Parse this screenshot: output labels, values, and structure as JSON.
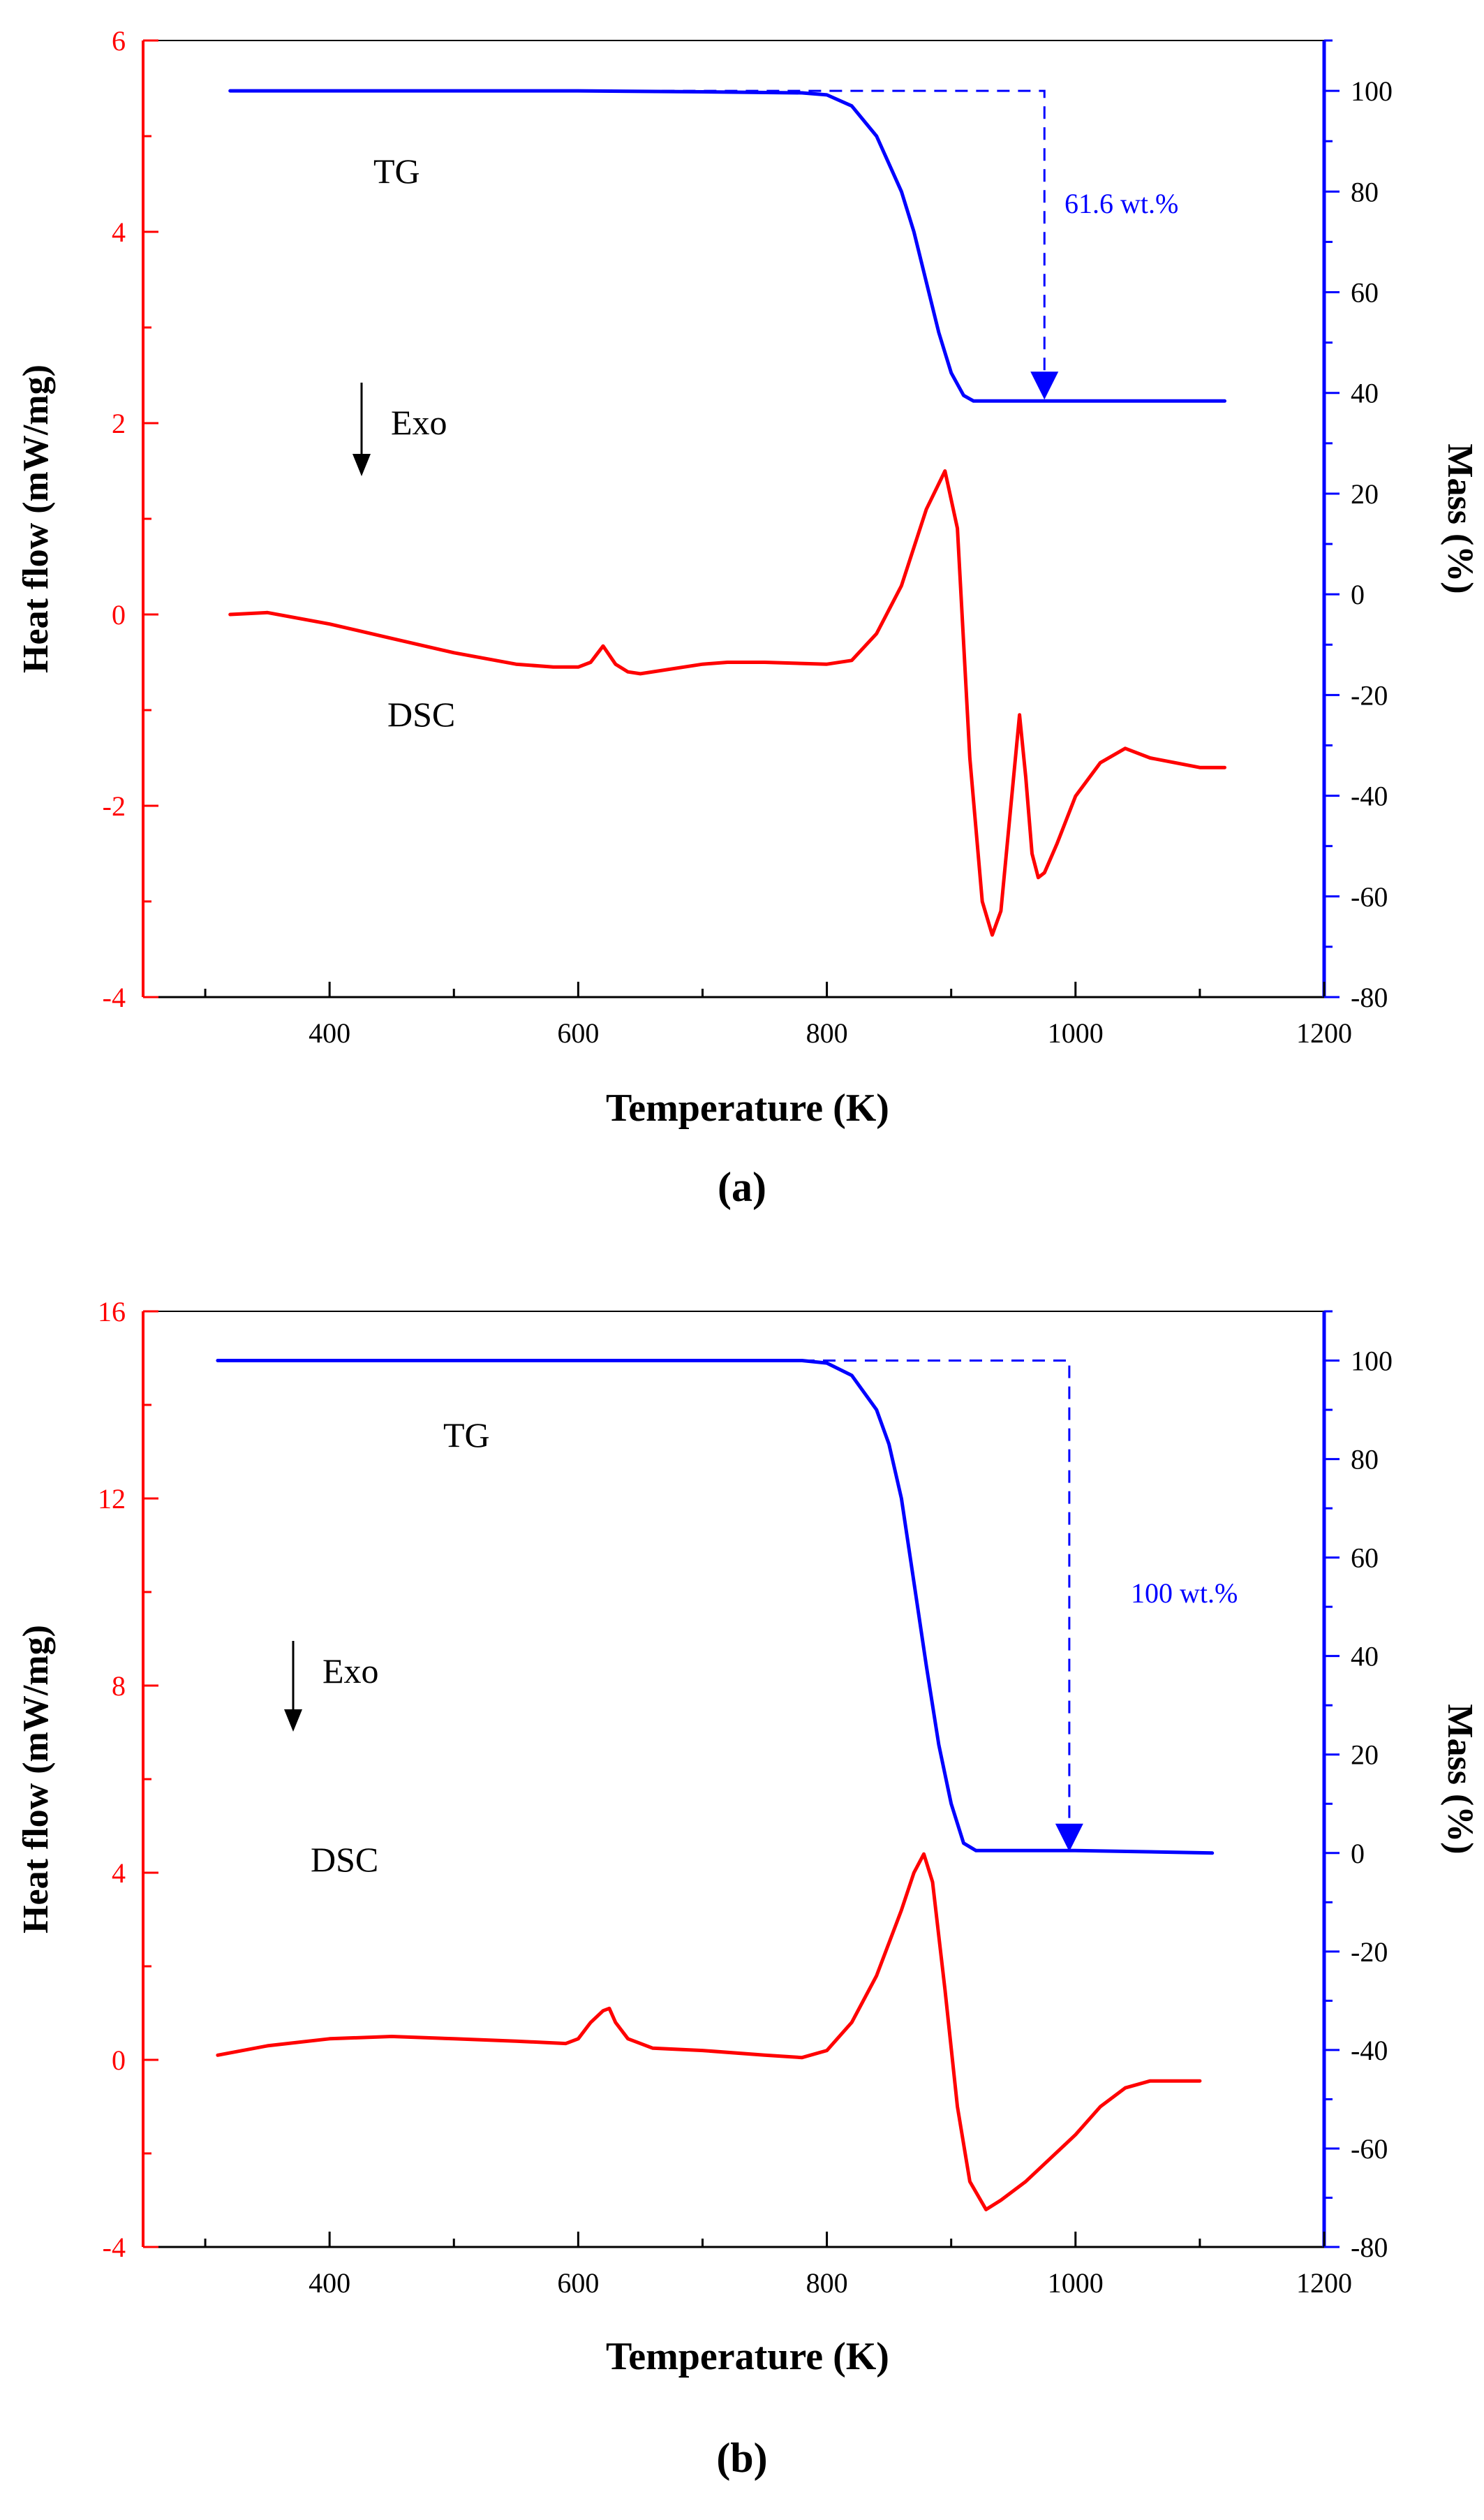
{
  "colors": {
    "heat": "#ff0000",
    "mass": "#0000ff",
    "text": "#000000"
  },
  "chart_data": [
    {
      "type": "line",
      "panel_label": "(a)",
      "xlabel": "Temperature (K)",
      "ylabel_left": "Heat flow (mW/mg)",
      "ylabel_right": "Mass (%)",
      "xlim": [
        250,
        1200
      ],
      "x_ticks": [
        400,
        600,
        800,
        1000,
        1200
      ],
      "ylim_left": [
        -4,
        6
      ],
      "y_ticks_left": [
        -4,
        -2,
        0,
        2,
        4,
        6
      ],
      "ylim_right": [
        -80,
        110
      ],
      "y_ticks_right": [
        -80,
        -60,
        -40,
        -20,
        0,
        20,
        40,
        60,
        80,
        100
      ],
      "annotations": {
        "tg": "TG",
        "dsc": "DSC",
        "exo": "Exo",
        "mass_loss": "61.6 wt.%"
      },
      "mass_loss_marker": {
        "x": 975,
        "from": 100,
        "to": 38.4
      },
      "series": [
        {
          "name": "DSC",
          "axis": "left",
          "x": [
            320,
            350,
            400,
            450,
            500,
            550,
            580,
            600,
            610,
            620,
            630,
            640,
            650,
            700,
            720,
            750,
            800,
            820,
            840,
            860,
            880,
            895,
            905,
            915,
            925,
            933,
            940,
            948,
            955,
            960,
            965,
            970,
            975,
            985,
            1000,
            1020,
            1040,
            1060,
            1080,
            1100,
            1120
          ],
          "values": [
            0.0,
            0.02,
            -0.1,
            -0.25,
            -0.4,
            -0.52,
            -0.55,
            -0.55,
            -0.5,
            -0.33,
            -0.52,
            -0.6,
            -0.62,
            -0.52,
            -0.5,
            -0.5,
            -0.52,
            -0.48,
            -0.2,
            0.3,
            1.1,
            1.5,
            0.9,
            -1.5,
            -3.0,
            -3.35,
            -3.1,
            -2.0,
            -1.05,
            -1.7,
            -2.5,
            -2.75,
            -2.7,
            -2.4,
            -1.9,
            -1.55,
            -1.4,
            -1.5,
            -1.55,
            -1.6,
            -1.6
          ]
        },
        {
          "name": "TG",
          "axis": "right",
          "x": [
            320,
            400,
            500,
            600,
            700,
            780,
            800,
            820,
            840,
            860,
            870,
            880,
            890,
            900,
            910,
            918,
            925,
            950,
            1000,
            1050,
            1100,
            1120
          ],
          "values": [
            100,
            100,
            100,
            100,
            99.8,
            99.6,
            99.2,
            97,
            91,
            80,
            72,
            62,
            52,
            44,
            39.5,
            38.4,
            38.4,
            38.4,
            38.4,
            38.4,
            38.4,
            38.4
          ]
        }
      ]
    },
    {
      "type": "line",
      "panel_label": "(b)",
      "xlabel": "Temperature (K)",
      "ylabel_left": "Heat flow (mW/mg)",
      "ylabel_right": "Mass (%)",
      "xlim": [
        250,
        1200
      ],
      "x_ticks": [
        400,
        600,
        800,
        1000,
        1200
      ],
      "ylim_left": [
        -4,
        16
      ],
      "y_ticks_left": [
        -4,
        0,
        4,
        8,
        12,
        16
      ],
      "ylim_right": [
        -80,
        110
      ],
      "y_ticks_right": [
        -80,
        -60,
        -40,
        -20,
        0,
        20,
        40,
        60,
        80,
        100
      ],
      "annotations": {
        "tg": "TG",
        "dsc": "DSC",
        "exo": "Exo",
        "mass_loss": "100 wt.%"
      },
      "mass_loss_marker": {
        "x": 995,
        "from": 100,
        "to": 0
      },
      "series": [
        {
          "name": "DSC",
          "axis": "left",
          "x": [
            310,
            350,
            400,
            450,
            500,
            550,
            590,
            600,
            610,
            620,
            625,
            630,
            640,
            660,
            700,
            750,
            780,
            800,
            820,
            840,
            860,
            870,
            878,
            885,
            895,
            905,
            915,
            928,
            940,
            960,
            980,
            1000,
            1020,
            1040,
            1060,
            1080,
            1100
          ],
          "values": [
            0.1,
            0.3,
            0.45,
            0.5,
            0.45,
            0.4,
            0.35,
            0.45,
            0.8,
            1.05,
            1.1,
            0.8,
            0.45,
            0.25,
            0.2,
            0.1,
            0.05,
            0.2,
            0.8,
            1.8,
            3.2,
            4.0,
            4.4,
            3.8,
            1.5,
            -1.0,
            -2.6,
            -3.2,
            -3.0,
            -2.6,
            -2.1,
            -1.6,
            -1.0,
            -0.6,
            -0.45,
            -0.45,
            -0.45
          ]
        },
        {
          "name": "TG",
          "axis": "right",
          "x": [
            310,
            400,
            500,
            600,
            700,
            780,
            800,
            820,
            840,
            850,
            860,
            870,
            880,
            890,
            900,
            910,
            920,
            950,
            1000,
            1050,
            1110
          ],
          "values": [
            100,
            100,
            100,
            100,
            100,
            100,
            99.5,
            97,
            90,
            83,
            72,
            55,
            38,
            22,
            10,
            2,
            0.5,
            0.5,
            0.5,
            0.3,
            0
          ]
        }
      ]
    }
  ]
}
